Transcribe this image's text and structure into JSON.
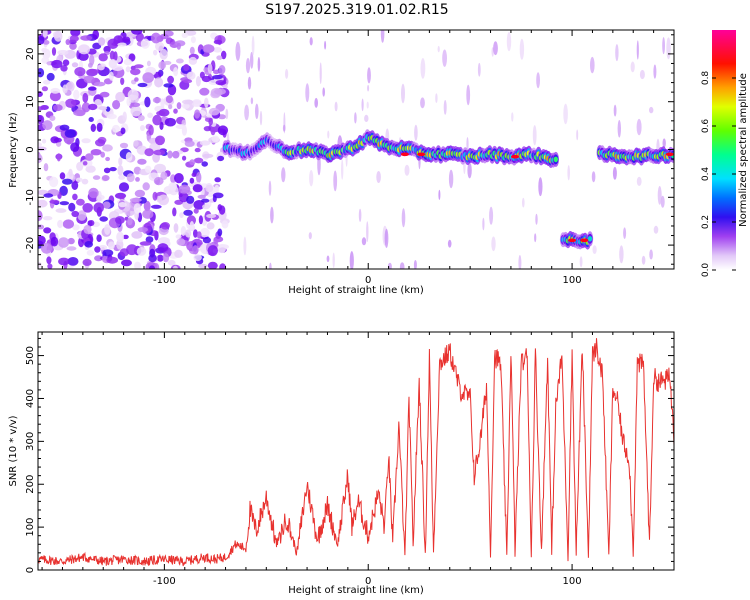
{
  "title": "S197.2025.319.01.02.R15",
  "colors": {
    "snr_line": "#e8322f",
    "axis": "#000000",
    "colormap": [
      "#ffffff",
      "#e8d0f8",
      "#a040f0",
      "#6a00f0",
      "#1515f0",
      "#00c8ff",
      "#00ff90",
      "#90ff00",
      "#ffff00",
      "#ff8000",
      "#ff0000",
      "#ff00aa"
    ]
  },
  "chart_data": [
    {
      "type": "heatmap",
      "name": "spectrogram",
      "xlabel": "Height of straight line (km)",
      "ylabel": "Frequency (Hz)",
      "xlim": [
        -162,
        150
      ],
      "ylim": [
        -25,
        25
      ],
      "xticks": [
        -100,
        0,
        100
      ],
      "yticks": [
        20,
        10,
        0,
        -10,
        -20
      ],
      "xtick_labels": [
        "-100",
        "0",
        "100"
      ],
      "ytick_labels": [
        "20",
        "10",
        "0",
        "-10",
        "-20"
      ],
      "colorbar": {
        "label": "Normalized spectral amplitude",
        "range": [
          0,
          1
        ],
        "ticks": [
          0.0,
          0.2,
          0.4,
          0.6,
          0.8
        ],
        "tick_labels": [
          "0.0",
          "0.2",
          "0.4",
          "0.6",
          "0.8"
        ]
      },
      "noise_region": {
        "x": [
          -162,
          -70
        ]
      },
      "ridge": [
        [
          -70,
          0.5
        ],
        [
          -60,
          -1
        ],
        [
          -50,
          2
        ],
        [
          -40,
          -0.5
        ],
        [
          -30,
          0
        ],
        [
          -20,
          -1
        ],
        [
          -10,
          0
        ],
        [
          -5,
          1
        ],
        [
          0,
          2.5
        ],
        [
          10,
          0.5
        ],
        [
          20,
          0
        ],
        [
          30,
          -1
        ],
        [
          40,
          -1
        ],
        [
          50,
          -1.5
        ],
        [
          60,
          -1
        ],
        [
          70,
          -1.5
        ],
        [
          80,
          -1
        ],
        [
          90,
          -2
        ],
        [
          93,
          -2
        ],
        [
          95,
          -19
        ],
        [
          110,
          -19
        ],
        [
          113,
          -1
        ],
        [
          130,
          -1.5
        ],
        [
          150,
          -1
        ]
      ]
    },
    {
      "type": "line",
      "name": "snr",
      "xlabel": "Height of straight line (km)",
      "ylabel": "SNR (10 * v/v)",
      "xlim": [
        -162,
        150
      ],
      "ylim": [
        0,
        555
      ],
      "xticks": [
        -100,
        0,
        100
      ],
      "yticks": [
        0,
        100,
        200,
        300,
        400,
        500
      ],
      "xtick_labels": [
        "-100",
        "0",
        "100"
      ],
      "ytick_labels": [
        "0",
        "100",
        "200",
        "300",
        "400",
        "500"
      ],
      "x": [
        -162,
        -150,
        -140,
        -130,
        -120,
        -110,
        -100,
        -90,
        -80,
        -75,
        -70,
        -65,
        -60,
        -58,
        -55,
        -50,
        -45,
        -40,
        -35,
        -30,
        -25,
        -20,
        -15,
        -10,
        -8,
        -5,
        0,
        5,
        8,
        10,
        12,
        15,
        18,
        20,
        22,
        25,
        28,
        30,
        32,
        35,
        40,
        45,
        50,
        52,
        55,
        58,
        60,
        62,
        65,
        68,
        70,
        72,
        75,
        78,
        80,
        82,
        85,
        88,
        90,
        92,
        95,
        98,
        100,
        102,
        105,
        108,
        110,
        112,
        115,
        118,
        120,
        122,
        125,
        128,
        130,
        132,
        135,
        138,
        140,
        142,
        145,
        148,
        150
      ],
      "y": [
        25,
        20,
        30,
        20,
        25,
        20,
        25,
        20,
        30,
        25,
        30,
        60,
        50,
        140,
        90,
        170,
        60,
        120,
        40,
        200,
        70,
        150,
        60,
        220,
        100,
        160,
        80,
        180,
        100,
        270,
        60,
        340,
        30,
        400,
        60,
        440,
        30,
        500,
        40,
        480,
        510,
        420,
        400,
        220,
        300,
        430,
        40,
        500,
        480,
        30,
        520,
        40,
        480,
        500,
        30,
        510,
        40,
        500,
        40,
        380,
        500,
        30,
        510,
        40,
        520,
        30,
        500,
        520,
        450,
        30,
        420,
        400,
        300,
        260,
        40,
        480,
        480,
        60,
        450,
        440,
        440,
        450,
        310
      ]
    }
  ]
}
